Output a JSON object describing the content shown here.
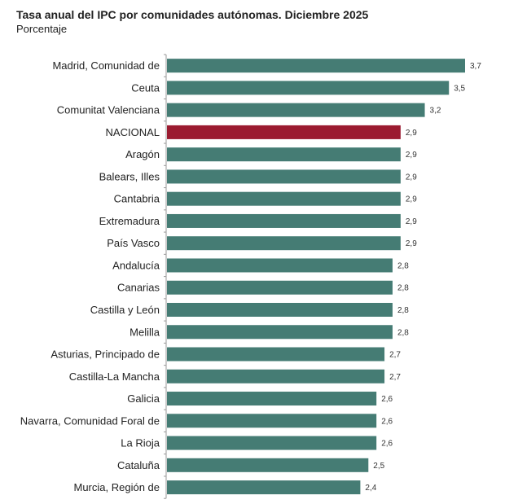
{
  "chart_data": {
    "type": "bar",
    "orientation": "horizontal",
    "title": "Tasa anual del IPC por comunidades autónomas. Diciembre 2025",
    "subtitle": "Porcentaje",
    "categories": [
      "Madrid, Comunidad de",
      "Ceuta",
      "Comunitat Valenciana",
      "NACIONAL",
      "Aragón",
      "Balears, Illes",
      "Cantabria",
      "Extremadura",
      "País Vasco",
      "Andalucía",
      "Canarias",
      "Castilla y León",
      "Melilla",
      "Asturias, Principado de",
      "Castilla-La Mancha",
      "Galicia",
      "Navarra, Comunidad Foral de",
      "La Rioja",
      "Cataluña",
      "Murcia, Región de"
    ],
    "values": [
      3.7,
      3.5,
      3.2,
      2.9,
      2.9,
      2.9,
      2.9,
      2.9,
      2.9,
      2.8,
      2.8,
      2.8,
      2.8,
      2.7,
      2.7,
      2.6,
      2.6,
      2.6,
      2.5,
      2.4
    ],
    "value_labels": [
      "3,7",
      "3,5",
      "3,2",
      "2,9",
      "2,9",
      "2,9",
      "2,9",
      "2,9",
      "2,9",
      "2,8",
      "2,8",
      "2,8",
      "2,8",
      "2,7",
      "2,7",
      "2,6",
      "2,6",
      "2,6",
      "2,5",
      "2,4"
    ],
    "xlim": [
      0,
      3.7
    ],
    "grid": false,
    "colors": {
      "default": "#457c74",
      "highlight": "#9b1b30"
    },
    "highlight": "NACIONAL"
  }
}
